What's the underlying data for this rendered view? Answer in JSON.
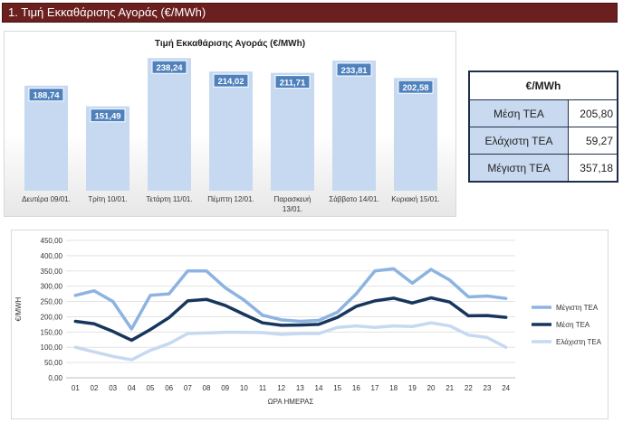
{
  "header": {
    "title": "1. Τιμή Εκκαθάρισης Αγοράς (€/MWh)"
  },
  "stats": {
    "header": "€/MWh",
    "rows": [
      {
        "label": "Μέση ΤΕΑ",
        "value": "205,80"
      },
      {
        "label": "Ελάχιστη ΤΕΑ",
        "value": "59,27"
      },
      {
        "label": "Μέγιστη ΤΕΑ",
        "value": "357,18"
      }
    ]
  },
  "colors": {
    "header_bg": "#6b1f1f",
    "bar": "#c6d9f1",
    "max": "#8db3e2",
    "mean": "#17365d",
    "min": "#c6d9f1"
  },
  "chart_data": [
    {
      "type": "bar",
      "title": "Τιμή Εκκαθάρισης Αγοράς (€/MWh)",
      "categories": [
        [
          "Δευτέρα 09/01."
        ],
        [
          "Τρίτη 10/01."
        ],
        [
          "Τετάρτη 11/01."
        ],
        [
          "Πέμπτη 12/01."
        ],
        [
          "Παρασκευή",
          "13/01."
        ],
        [
          "Σάββατο 14/01."
        ],
        [
          "Κυριακή 15/01."
        ]
      ],
      "values": [
        188.74,
        151.49,
        238.24,
        214.02,
        211.71,
        233.81,
        202.58
      ],
      "value_labels": [
        "188,74",
        "151,49",
        "238,24",
        "214,02",
        "211,71",
        "233,81",
        "202,58"
      ],
      "ylim": [
        0,
        250
      ],
      "grid": false,
      "legend": "none"
    },
    {
      "type": "line",
      "xlabel": "ΩΡΑ ΗΜΕΡΑΣ",
      "ylabel": "€/MWH",
      "x": [
        "01",
        "02",
        "03",
        "04",
        "05",
        "06",
        "07",
        "08",
        "09",
        "10",
        "11",
        "12",
        "13",
        "14",
        "15",
        "16",
        "17",
        "18",
        "19",
        "20",
        "21",
        "22",
        "23",
        "24"
      ],
      "ylim": [
        0,
        450
      ],
      "yticks": [
        "0,00",
        "50,00",
        "100,00",
        "150,00",
        "200,00",
        "250,00",
        "300,00",
        "350,00",
        "400,00",
        "450,00"
      ],
      "grid": true,
      "legend": "right",
      "series": [
        {
          "name": "Μέγιστη ΤΕΑ",
          "values": [
            270,
            285,
            250,
            160,
            270,
            275,
            350,
            350,
            295,
            255,
            205,
            190,
            185,
            188,
            215,
            275,
            350,
            357,
            310,
            355,
            320,
            265,
            268,
            260
          ]
        },
        {
          "name": "Μέση ΤΕΑ",
          "values": [
            185,
            177,
            152,
            123,
            158,
            197,
            252,
            257,
            237,
            208,
            180,
            172,
            173,
            175,
            198,
            234,
            252,
            261,
            245,
            262,
            248,
            203,
            204,
            198
          ]
        },
        {
          "name": "Ελάχιστη ΤΕΑ",
          "values": [
            100,
            85,
            70,
            59,
            90,
            112,
            145,
            147,
            149,
            149,
            148,
            142,
            145,
            145,
            165,
            170,
            165,
            170,
            168,
            180,
            170,
            140,
            132,
            100
          ]
        }
      ]
    }
  ]
}
